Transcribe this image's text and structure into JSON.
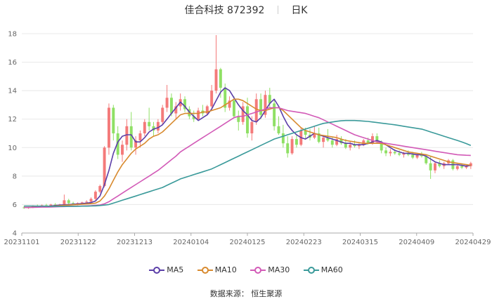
{
  "header": {
    "stock_name_code": "佳合科技 872392",
    "period": "日K"
  },
  "legend": [
    {
      "label": "MA5",
      "color": "#5b3ea8"
    },
    {
      "label": "MA10",
      "color": "#d88a2e"
    },
    {
      "label": "MA30",
      "color": "#d25ab7"
    },
    {
      "label": "MA60",
      "color": "#3a9a9a"
    }
  ],
  "source": "数据来源： 恒生聚源",
  "colors": {
    "up": "#f47a7a",
    "down": "#8fe065",
    "grid": "#e8e8e8"
  },
  "chart_data": {
    "type": "candlestick",
    "title": "佳合科技 872392 日K",
    "ylim": [
      4,
      18
    ],
    "yticks": [
      4,
      6,
      8,
      10,
      12,
      14,
      16,
      18
    ],
    "xtick_labels": [
      "20231101",
      "20231122",
      "20231213",
      "20240104",
      "20240125",
      "20240223",
      "20240315",
      "20240409",
      "20240429"
    ],
    "ohlc_columns": [
      "open",
      "high",
      "low",
      "close"
    ],
    "candles": [
      [
        5.8,
        5.9,
        5.7,
        5.75
      ],
      [
        5.75,
        5.85,
        5.7,
        5.8
      ],
      [
        5.8,
        5.95,
        5.75,
        5.9
      ],
      [
        5.9,
        6.0,
        5.8,
        5.85
      ],
      [
        5.85,
        6.0,
        5.8,
        5.95
      ],
      [
        5.95,
        6.05,
        5.85,
        5.9
      ],
      [
        5.9,
        6.05,
        5.85,
        6.0
      ],
      [
        6.0,
        6.1,
        5.9,
        5.95
      ],
      [
        5.95,
        6.05,
        5.85,
        6.0
      ],
      [
        6.0,
        6.7,
        5.9,
        6.3
      ],
      [
        6.3,
        6.4,
        6.0,
        6.1
      ],
      [
        6.1,
        6.2,
        5.95,
        6.05
      ],
      [
        6.05,
        6.15,
        5.95,
        6.1
      ],
      [
        6.1,
        6.2,
        6.0,
        6.15
      ],
      [
        6.15,
        6.3,
        6.05,
        6.2
      ],
      [
        6.2,
        6.5,
        6.1,
        6.4
      ],
      [
        6.4,
        7.0,
        6.3,
        6.9
      ],
      [
        6.9,
        7.4,
        6.8,
        7.3
      ],
      [
        7.3,
        10.1,
        7.2,
        10.0
      ],
      [
        10.0,
        13.1,
        9.5,
        12.8
      ],
      [
        12.8,
        13.0,
        10.5,
        11.0
      ],
      [
        11.0,
        11.5,
        9.2,
        9.5
      ],
      [
        9.5,
        10.5,
        9.0,
        10.2
      ],
      [
        10.2,
        12.0,
        9.8,
        11.5
      ],
      [
        11.5,
        12.5,
        9.8,
        10.0
      ],
      [
        10.0,
        10.8,
        9.5,
        10.5
      ],
      [
        10.5,
        11.2,
        10.0,
        11.0
      ],
      [
        11.0,
        12.0,
        10.8,
        11.8
      ],
      [
        11.8,
        12.8,
        11.2,
        11.5
      ],
      [
        11.5,
        11.8,
        10.8,
        11.2
      ],
      [
        11.2,
        12.0,
        11.0,
        11.8
      ],
      [
        11.8,
        13.0,
        11.6,
        12.8
      ],
      [
        12.8,
        14.4,
        12.5,
        13.5
      ],
      [
        13.5,
        13.8,
        12.2,
        12.4
      ],
      [
        12.4,
        13.2,
        12.0,
        12.9
      ],
      [
        12.9,
        13.8,
        12.6,
        13.4
      ],
      [
        13.4,
        13.6,
        12.5,
        12.7
      ],
      [
        12.7,
        12.9,
        12.0,
        12.2
      ],
      [
        12.2,
        12.6,
        11.8,
        12.0
      ],
      [
        12.0,
        12.8,
        11.9,
        12.6
      ],
      [
        12.6,
        13.0,
        12.2,
        12.4
      ],
      [
        12.4,
        13.0,
        12.3,
        12.9
      ],
      [
        12.9,
        14.4,
        12.8,
        14.0
      ],
      [
        14.0,
        17.9,
        13.8,
        15.5
      ],
      [
        15.5,
        15.6,
        13.5,
        14.2
      ],
      [
        14.2,
        14.5,
        12.5,
        12.8
      ],
      [
        12.8,
        13.6,
        12.6,
        13.3
      ],
      [
        13.3,
        13.6,
        12.1,
        12.2
      ],
      [
        12.2,
        12.6,
        11.2,
        11.8
      ],
      [
        11.8,
        13.2,
        11.6,
        12.9
      ],
      [
        12.9,
        13.5,
        10.7,
        11.0
      ],
      [
        11.0,
        12.2,
        10.5,
        11.8
      ],
      [
        11.8,
        13.8,
        11.6,
        13.4
      ],
      [
        13.4,
        13.8,
        12.0,
        12.3
      ],
      [
        12.3,
        14.0,
        12.1,
        13.7
      ],
      [
        13.7,
        14.2,
        12.8,
        13.1
      ],
      [
        13.1,
        13.4,
        11.2,
        11.5
      ],
      [
        11.5,
        12.2,
        10.9,
        11.0
      ],
      [
        11.0,
        11.6,
        10.0,
        10.3
      ],
      [
        10.3,
        10.8,
        9.3,
        9.6
      ],
      [
        9.6,
        10.8,
        9.5,
        10.6
      ],
      [
        10.6,
        10.9,
        10.0,
        10.2
      ],
      [
        10.2,
        11.4,
        10.1,
        11.2
      ],
      [
        11.2,
        11.4,
        10.6,
        10.9
      ],
      [
        10.9,
        11.3,
        10.5,
        10.7
      ],
      [
        10.7,
        11.5,
        10.6,
        11.0
      ],
      [
        11.0,
        11.4,
        10.3,
        10.4
      ],
      [
        10.4,
        10.8,
        10.0,
        10.7
      ],
      [
        10.7,
        11.3,
        10.4,
        10.5
      ],
      [
        10.5,
        10.7,
        10.0,
        10.2
      ],
      [
        10.2,
        10.9,
        10.1,
        10.6
      ],
      [
        10.6,
        10.8,
        10.2,
        10.3
      ],
      [
        10.3,
        10.6,
        9.9,
        10.0
      ],
      [
        10.0,
        10.4,
        9.8,
        10.2
      ],
      [
        10.2,
        10.5,
        10.0,
        10.1
      ],
      [
        10.1,
        10.3,
        9.9,
        10.2
      ],
      [
        10.2,
        10.6,
        10.1,
        10.5
      ],
      [
        10.5,
        10.7,
        10.2,
        10.3
      ],
      [
        10.3,
        11.0,
        10.2,
        10.8
      ],
      [
        10.8,
        11.0,
        10.3,
        10.4
      ],
      [
        10.4,
        10.5,
        9.6,
        9.8
      ],
      [
        9.8,
        10.0,
        9.4,
        9.6
      ],
      [
        9.6,
        9.9,
        9.4,
        9.7
      ],
      [
        9.7,
        9.9,
        9.5,
        9.6
      ],
      [
        9.6,
        9.8,
        9.4,
        9.5
      ],
      [
        9.5,
        9.7,
        9.3,
        9.6
      ],
      [
        9.6,
        9.8,
        9.4,
        9.5
      ],
      [
        9.5,
        9.7,
        9.2,
        9.3
      ],
      [
        9.3,
        9.6,
        9.2,
        9.5
      ],
      [
        9.5,
        9.7,
        9.3,
        9.4
      ],
      [
        9.4,
        9.5,
        8.8,
        8.9
      ],
      [
        8.9,
        9.4,
        7.8,
        8.4
      ],
      [
        8.4,
        9.0,
        8.2,
        8.9
      ],
      [
        8.9,
        9.1,
        8.6,
        8.7
      ],
      [
        8.7,
        9.0,
        8.5,
        8.9
      ],
      [
        8.9,
        9.2,
        8.8,
        9.1
      ],
      [
        9.1,
        9.2,
        8.4,
        8.5
      ],
      [
        8.5,
        8.8,
        8.4,
        8.7
      ],
      [
        8.7,
        8.9,
        8.5,
        8.6
      ],
      [
        8.6,
        8.8,
        8.5,
        8.7
      ],
      [
        8.7,
        9.0,
        8.5,
        8.9
      ]
    ],
    "ma": {
      "MA5": [
        5.8,
        5.8,
        5.82,
        5.84,
        5.86,
        5.88,
        5.9,
        5.93,
        5.96,
        5.98,
        6.0,
        6.02,
        6.04,
        6.07,
        6.1,
        6.14,
        6.25,
        6.6,
        7.4,
        8.4,
        9.6,
        10.4,
        10.8,
        10.9,
        10.9,
        10.4,
        10.4,
        10.7,
        11.1,
        11.3,
        11.4,
        11.6,
        12.0,
        12.4,
        12.8,
        13.2,
        12.9,
        12.5,
        12.2,
        11.9,
        12.1,
        12.3,
        12.7,
        13.3,
        13.9,
        14.2,
        14.0,
        13.5,
        13.0,
        12.6,
        12.3,
        11.9,
        11.8,
        12.1,
        12.6,
        13.1,
        13.4,
        12.9,
        12.2,
        11.6,
        11.2,
        10.9,
        10.7,
        10.6,
        10.8,
        11.0,
        10.9,
        10.8,
        10.7,
        10.6,
        10.5,
        10.4,
        10.3,
        10.3,
        10.2,
        10.2,
        10.2,
        10.3,
        10.4,
        10.5,
        10.4,
        10.2,
        10.0,
        9.8,
        9.7,
        9.6,
        9.6,
        9.55,
        9.5,
        9.5,
        9.4,
        9.2,
        9.0,
        8.9,
        8.8,
        8.8,
        8.8,
        8.8,
        8.75,
        8.7,
        8.75
      ],
      "MA10": [
        5.8,
        5.8,
        5.81,
        5.83,
        5.85,
        5.86,
        5.88,
        5.9,
        5.92,
        5.94,
        5.96,
        5.98,
        6.0,
        6.02,
        6.04,
        6.06,
        6.1,
        6.25,
        6.6,
        7.1,
        7.7,
        8.3,
        8.8,
        9.2,
        9.6,
        9.9,
        10.1,
        10.3,
        10.6,
        10.8,
        10.9,
        11.1,
        11.4,
        11.7,
        12.0,
        12.3,
        12.4,
        12.4,
        12.4,
        12.4,
        12.5,
        12.5,
        12.6,
        12.7,
        12.8,
        13.0,
        13.2,
        13.4,
        13.4,
        13.3,
        13.1,
        12.9,
        12.7,
        12.6,
        12.6,
        12.7,
        12.8,
        12.8,
        12.6,
        12.3,
        12.0,
        11.7,
        11.4,
        11.2,
        11.1,
        11.0,
        10.9,
        10.85,
        10.8,
        10.75,
        10.7,
        10.6,
        10.5,
        10.45,
        10.4,
        10.35,
        10.3,
        10.3,
        10.3,
        10.3,
        10.3,
        10.2,
        10.1,
        10.0,
        9.9,
        9.8,
        9.7,
        9.65,
        9.6,
        9.55,
        9.5,
        9.4,
        9.3,
        9.2,
        9.1,
        9.0,
        8.95,
        8.9,
        8.85,
        8.8,
        8.75
      ],
      "MA30": [
        5.8,
        5.8,
        5.8,
        5.81,
        5.82,
        5.82,
        5.83,
        5.84,
        5.85,
        5.86,
        5.87,
        5.88,
        5.89,
        5.9,
        5.91,
        5.92,
        5.94,
        5.97,
        6.05,
        6.2,
        6.4,
        6.6,
        6.8,
        7.0,
        7.2,
        7.4,
        7.6,
        7.8,
        8.0,
        8.2,
        8.4,
        8.65,
        8.9,
        9.15,
        9.4,
        9.7,
        9.9,
        10.1,
        10.3,
        10.5,
        10.7,
        10.9,
        11.1,
        11.3,
        11.5,
        11.7,
        11.9,
        12.1,
        12.2,
        12.2,
        12.3,
        12.4,
        12.5,
        12.6,
        12.7,
        12.8,
        12.8,
        12.8,
        12.7,
        12.6,
        12.55,
        12.5,
        12.45,
        12.4,
        12.3,
        12.2,
        12.1,
        11.95,
        11.8,
        11.65,
        11.5,
        11.35,
        11.2,
        11.05,
        10.9,
        10.8,
        10.7,
        10.6,
        10.5,
        10.4,
        10.35,
        10.3,
        10.25,
        10.2,
        10.15,
        10.1,
        10.05,
        10.0,
        9.95,
        9.9,
        9.85,
        9.8,
        9.75,
        9.7,
        9.65,
        9.6,
        9.55,
        9.5,
        9.48,
        9.46,
        9.45
      ],
      "MA60": [
        5.9,
        5.9,
        5.9,
        5.89,
        5.89,
        5.89,
        5.88,
        5.88,
        5.88,
        5.88,
        5.88,
        5.88,
        5.88,
        5.89,
        5.89,
        5.9,
        5.91,
        5.93,
        5.96,
        6.0,
        6.1,
        6.2,
        6.3,
        6.4,
        6.5,
        6.6,
        6.7,
        6.8,
        6.9,
        7.0,
        7.1,
        7.2,
        7.35,
        7.5,
        7.65,
        7.8,
        7.9,
        8.0,
        8.1,
        8.2,
        8.3,
        8.4,
        8.5,
        8.65,
        8.8,
        8.95,
        9.1,
        9.25,
        9.4,
        9.55,
        9.7,
        9.85,
        10.0,
        10.15,
        10.3,
        10.45,
        10.6,
        10.7,
        10.8,
        10.9,
        11.0,
        11.1,
        11.2,
        11.3,
        11.4,
        11.5,
        11.6,
        11.7,
        11.75,
        11.8,
        11.85,
        11.88,
        11.9,
        11.9,
        11.9,
        11.88,
        11.86,
        11.84,
        11.8,
        11.76,
        11.72,
        11.68,
        11.64,
        11.6,
        11.55,
        11.5,
        11.45,
        11.4,
        11.35,
        11.3,
        11.2,
        11.1,
        11.0,
        10.9,
        10.8,
        10.7,
        10.6,
        10.5,
        10.4,
        10.28,
        10.15
      ]
    }
  }
}
